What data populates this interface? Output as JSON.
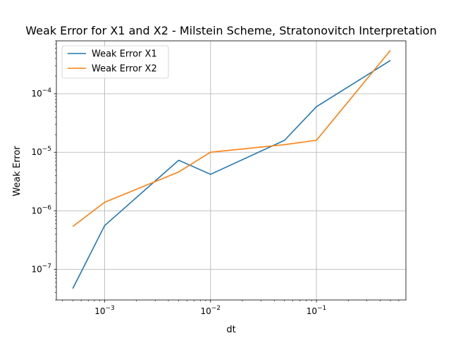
{
  "chart_data": {
    "type": "line",
    "title": "Weak Error for X1 and X2 - Milstein Scheme, Stratonovitch Interpretation",
    "xlabel": "dt",
    "ylabel": "Weak Error",
    "xscale": "log",
    "yscale": "log",
    "xlim": [
      0.00035,
      0.7
    ],
    "ylim": [
      3e-08,
      0.0008
    ],
    "grid": true,
    "legend_position": "top-left",
    "x_ticks": [
      {
        "base": "10",
        "exp": "−3",
        "value": 0.001
      },
      {
        "base": "10",
        "exp": "−2",
        "value": 0.01
      },
      {
        "base": "10",
        "exp": "−1",
        "value": 0.1
      }
    ],
    "y_ticks": [
      {
        "base": "10",
        "exp": "−7",
        "value": 1e-07
      },
      {
        "base": "10",
        "exp": "−6",
        "value": 1e-06
      },
      {
        "base": "10",
        "exp": "−5",
        "value": 1e-05
      },
      {
        "base": "10",
        "exp": "−4",
        "value": 0.0001
      }
    ],
    "x": [
      0.0005,
      0.001,
      0.005,
      0.01,
      0.05,
      0.1,
      0.5
    ],
    "series": [
      {
        "name": "Weak Error X1",
        "color": "#1f77b4",
        "values": [
          4.7e-08,
          5.6e-07,
          7.3e-06,
          4.2e-06,
          1.6e-05,
          6e-05,
          0.00037
        ]
      },
      {
        "name": " Weak Error X2",
        "color": "#ff7f0e",
        "values": [
          5.4e-07,
          1.4e-06,
          4.6e-06,
          1e-05,
          1.35e-05,
          1.6e-05,
          0.00055
        ]
      }
    ]
  }
}
